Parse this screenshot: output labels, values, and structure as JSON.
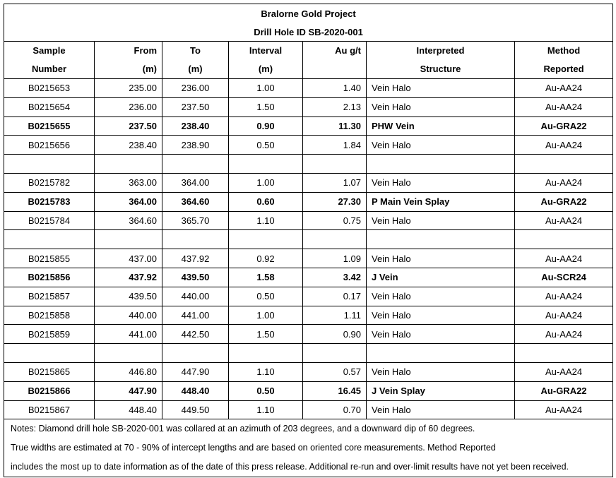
{
  "title": "Bralorne Gold Project",
  "subtitle": "Drill Hole ID SB-2020-001",
  "headers": [
    [
      "Sample",
      "Number"
    ],
    [
      "From",
      "(m)"
    ],
    [
      "To",
      "(m)"
    ],
    [
      "Interval",
      "(m)"
    ],
    [
      "Au g/t",
      ""
    ],
    [
      "Interpreted",
      "Structure"
    ],
    [
      "Method",
      "Reported"
    ]
  ],
  "rows": [
    {
      "sample": "B0215653",
      "from": "235.00",
      "to": "236.00",
      "interval": "1.00",
      "au": "1.40",
      "structure": "Vein Halo",
      "method": "Au-AA24",
      "bold": false
    },
    {
      "sample": "B0215654",
      "from": "236.00",
      "to": "237.50",
      "interval": "1.50",
      "au": "2.13",
      "structure": "Vein Halo",
      "method": "Au-AA24",
      "bold": false
    },
    {
      "sample": "B0215655",
      "from": "237.50",
      "to": "238.40",
      "interval": "0.90",
      "au": "11.30",
      "structure": "PHW Vein",
      "method": "Au-GRA22",
      "bold": true
    },
    {
      "sample": "B0215656",
      "from": "238.40",
      "to": "238.90",
      "interval": "0.50",
      "au": "1.84",
      "structure": "Vein Halo",
      "method": "Au-AA24",
      "bold": false
    },
    {
      "blank": true
    },
    {
      "sample": "B0215782",
      "from": "363.00",
      "to": "364.00",
      "interval": "1.00",
      "au": "1.07",
      "structure": "Vein Halo",
      "method": "Au-AA24",
      "bold": false
    },
    {
      "sample": "B0215783",
      "from": "364.00",
      "to": "364.60",
      "interval": "0.60",
      "au": "27.30",
      "structure": "P Main Vein Splay",
      "method": "Au-GRA22",
      "bold": true
    },
    {
      "sample": "B0215784",
      "from": "364.60",
      "to": "365.70",
      "interval": "1.10",
      "au": "0.75",
      "structure": "Vein Halo",
      "method": "Au-AA24",
      "bold": false
    },
    {
      "blank": true
    },
    {
      "sample": "B0215855",
      "from": "437.00",
      "to": "437.92",
      "interval": "0.92",
      "au": "1.09",
      "structure": "Vein Halo",
      "method": "Au-AA24",
      "bold": false
    },
    {
      "sample": "B0215856",
      "from": "437.92",
      "to": "439.50",
      "interval": "1.58",
      "au": "3.42",
      "structure": "J Vein",
      "method": "Au-SCR24",
      "bold": true
    },
    {
      "sample": "B0215857",
      "from": "439.50",
      "to": "440.00",
      "interval": "0.50",
      "au": "0.17",
      "structure": "Vein Halo",
      "method": "Au-AA24",
      "bold": false
    },
    {
      "sample": "B0215858",
      "from": "440.00",
      "to": "441.00",
      "interval": "1.00",
      "au": "1.11",
      "structure": "Vein Halo",
      "method": "Au-AA24",
      "bold": false
    },
    {
      "sample": "B0215859",
      "from": "441.00",
      "to": "442.50",
      "interval": "1.50",
      "au": "0.90",
      "structure": "Vein Halo",
      "method": "Au-AA24",
      "bold": false
    },
    {
      "blank": true
    },
    {
      "sample": "B0215865",
      "from": "446.80",
      "to": "447.90",
      "interval": "1.10",
      "au": "0.57",
      "structure": "Vein Halo",
      "method": "Au-AA24",
      "bold": false
    },
    {
      "sample": "B0215866",
      "from": "447.90",
      "to": "448.40",
      "interval": "0.50",
      "au": "16.45",
      "structure": "J Vein Splay",
      "method": "Au-GRA22",
      "bold": true
    },
    {
      "sample": "B0215867",
      "from": "448.40",
      "to": "449.50",
      "interval": "1.10",
      "au": "0.70",
      "structure": "Vein Halo",
      "method": "Au-AA24",
      "bold": false
    }
  ],
  "notes": [
    "Notes:  Diamond drill hole SB-2020-001 was collared at an azimuth of 203 degrees, and a downward dip of 60 degrees.",
    "True widths are estimated at 70 - 90% of intercept lengths and are based on oriented core measurements. Method Reported",
    "includes the most up to date information as of the date of this press release. Additional re-run and over-limit results have not yet been received."
  ]
}
